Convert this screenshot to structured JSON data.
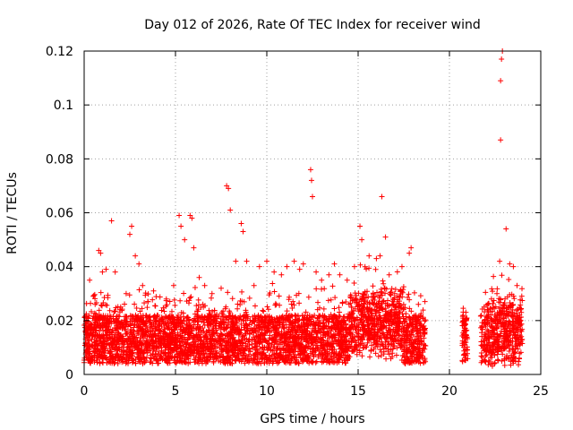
{
  "chart_data": {
    "type": "scatter",
    "title": "Day 012 of 2026, Rate Of TEC Index for receiver wind",
    "xlabel": "GPS time / hours",
    "ylabel": "ROTI / TECUs",
    "xlim": [
      0,
      25
    ],
    "ylim": [
      0,
      0.12
    ],
    "xticks": [
      0,
      5,
      10,
      15,
      20,
      25
    ],
    "xtick_labels": [
      "0",
      "5",
      "10",
      "15",
      "20",
      "25"
    ],
    "yticks": [
      0,
      0.02,
      0.04,
      0.06,
      0.08,
      0.1,
      0.12
    ],
    "ytick_labels": [
      "0",
      "0.02",
      "0.04",
      "0.06",
      "0.08",
      "0.1",
      "0.12"
    ],
    "grid": true,
    "marker": "+",
    "color": "#ff0000",
    "data_windows_hours": [
      [
        0,
        18.7
      ],
      [
        20.7,
        21.0
      ],
      [
        21.7,
        24.0
      ]
    ],
    "series": [
      {
        "name": "ROTI",
        "points": [
          [
            0.1,
            0.021
          ],
          [
            0.3,
            0.035
          ],
          [
            0.5,
            0.029
          ],
          [
            0.6,
            0.026
          ],
          [
            0.8,
            0.046
          ],
          [
            0.9,
            0.045
          ],
          [
            1.0,
            0.038
          ],
          [
            1.2,
            0.039
          ],
          [
            1.5,
            0.057
          ],
          [
            1.7,
            0.038
          ],
          [
            2.0,
            0.025
          ],
          [
            2.3,
            0.03
          ],
          [
            2.5,
            0.052
          ],
          [
            2.6,
            0.055
          ],
          [
            2.8,
            0.044
          ],
          [
            3.0,
            0.041
          ],
          [
            3.2,
            0.033
          ],
          [
            3.5,
            0.027
          ],
          [
            3.8,
            0.031
          ],
          [
            4.0,
            0.022
          ],
          [
            4.5,
            0.028
          ],
          [
            4.9,
            0.033
          ],
          [
            5.2,
            0.059
          ],
          [
            5.3,
            0.055
          ],
          [
            5.5,
            0.05
          ],
          [
            5.8,
            0.059
          ],
          [
            5.9,
            0.058
          ],
          [
            6.0,
            0.047
          ],
          [
            6.3,
            0.036
          ],
          [
            6.6,
            0.033
          ],
          [
            7.0,
            0.03
          ],
          [
            7.5,
            0.032
          ],
          [
            7.8,
            0.07
          ],
          [
            7.9,
            0.069
          ],
          [
            8.0,
            0.061
          ],
          [
            8.3,
            0.042
          ],
          [
            8.6,
            0.056
          ],
          [
            8.7,
            0.053
          ],
          [
            8.9,
            0.042
          ],
          [
            9.3,
            0.033
          ],
          [
            9.6,
            0.04
          ],
          [
            10.0,
            0.042
          ],
          [
            10.4,
            0.038
          ],
          [
            10.8,
            0.037
          ],
          [
            11.1,
            0.04
          ],
          [
            11.5,
            0.042
          ],
          [
            11.8,
            0.039
          ],
          [
            12.0,
            0.041
          ],
          [
            12.4,
            0.076
          ],
          [
            12.45,
            0.072
          ],
          [
            12.5,
            0.066
          ],
          [
            12.7,
            0.038
          ],
          [
            13.0,
            0.035
          ],
          [
            13.4,
            0.037
          ],
          [
            13.7,
            0.041
          ],
          [
            14.0,
            0.037
          ],
          [
            14.4,
            0.035
          ],
          [
            14.8,
            0.04
          ],
          [
            15.1,
            0.055
          ],
          [
            15.2,
            0.05
          ],
          [
            15.6,
            0.044
          ],
          [
            16.0,
            0.043
          ],
          [
            16.2,
            0.044
          ],
          [
            16.3,
            0.066
          ],
          [
            16.5,
            0.051
          ],
          [
            16.7,
            0.037
          ],
          [
            17.0,
            0.03
          ],
          [
            17.4,
            0.04
          ],
          [
            17.8,
            0.045
          ],
          [
            17.9,
            0.047
          ],
          [
            18.3,
            0.026
          ],
          [
            18.6,
            0.018
          ],
          [
            20.8,
            0.018
          ],
          [
            21.9,
            0.025
          ],
          [
            22.3,
            0.028
          ],
          [
            22.6,
            0.03
          ],
          [
            22.75,
            0.042
          ],
          [
            22.8,
            0.109
          ],
          [
            22.85,
            0.117
          ],
          [
            22.9,
            0.12
          ],
          [
            22.8,
            0.087
          ],
          [
            23.1,
            0.054
          ],
          [
            23.3,
            0.041
          ],
          [
            23.5,
            0.04
          ],
          [
            23.7,
            0.033
          ],
          [
            23.9,
            0.024
          ]
        ]
      }
    ]
  }
}
